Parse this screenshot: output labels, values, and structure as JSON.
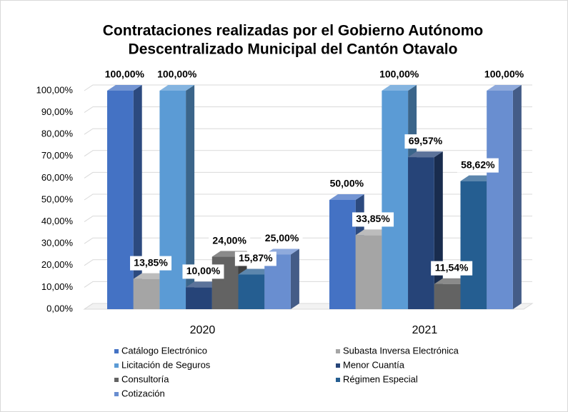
{
  "chart_data": {
    "type": "bar3d",
    "title": [
      "Contrataciones realizadas por el Gobierno Autónomo",
      "Descentralizado Municipal del Cantón Otavalo"
    ],
    "categories": [
      "2020",
      "2021"
    ],
    "series": [
      {
        "name": "Catálogo Electrónico",
        "color": "#4472c4",
        "values": [
          100,
          50
        ],
        "value_labels": [
          "100,00%",
          "50,00%"
        ]
      },
      {
        "name": "Subasta Inversa Electrónica",
        "color": "#a5a5a5",
        "values": [
          13.85,
          33.85
        ],
        "value_labels": [
          "13,85%",
          "33,85%"
        ]
      },
      {
        "name": "Licitación de Seguros",
        "color": "#5b9bd5",
        "values": [
          100,
          100
        ],
        "value_labels": [
          "100,00%",
          "100,00%"
        ]
      },
      {
        "name": "Menor Cuantía",
        "color": "#264478",
        "values": [
          10,
          69.57
        ],
        "value_labels": [
          "10,00%",
          "69,57%"
        ]
      },
      {
        "name": "Consultoría",
        "color": "#636363",
        "values": [
          24,
          11.54
        ],
        "value_labels": [
          "24,00%",
          "11,54%"
        ]
      },
      {
        "name": "Régimen Especial",
        "color": "#255e91",
        "values": [
          15.87,
          58.62
        ],
        "value_labels": [
          "15,87%",
          "58,62%"
        ]
      },
      {
        "name": "Cotización",
        "color": "#698ed0",
        "values": [
          25,
          100
        ],
        "value_labels": [
          "25,00%",
          "100,00%"
        ]
      }
    ],
    "ylim": [
      0,
      100
    ],
    "yticks": [
      {
        "value": 0,
        "label": "0,00%"
      },
      {
        "value": 10,
        "label": "10,00%"
      },
      {
        "value": 20,
        "label": "20,00%"
      },
      {
        "value": 30,
        "label": "30,00%"
      },
      {
        "value": 40,
        "label": "40,00%"
      },
      {
        "value": 50,
        "label": "50,00%"
      },
      {
        "value": 60,
        "label": "60,00%"
      },
      {
        "value": 70,
        "label": "70,00%"
      },
      {
        "value": 80,
        "label": "80,00%"
      },
      {
        "value": 90,
        "label": "90,00%"
      },
      {
        "value": 100,
        "label": "100,00%"
      }
    ],
    "grid": true,
    "legend": "bottom"
  }
}
